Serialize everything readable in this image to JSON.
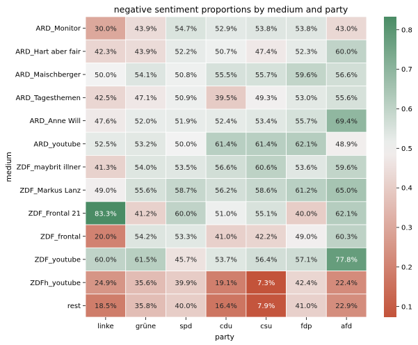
{
  "chart_data": {
    "type": "heatmap",
    "title": "negative sentiment proportions by medium and party",
    "xlabel": "party",
    "ylabel": "medium",
    "x_categories": [
      "linke",
      "grüne",
      "spd",
      "cdu",
      "csu",
      "fdp",
      "afd"
    ],
    "y_categories": [
      "ARD_Monitor",
      "ARD_Hart aber fair",
      "ARD_Maischberger",
      "ARD_Tagesthemen",
      "ARD_Anne Will",
      "ARD_youtube",
      "ZDF_maybrit illner",
      "ZDF_Markus Lanz",
      "ZDF_Frontal 21",
      "ZDF_frontal",
      "ZDF_youtube",
      "ZDFh_youtube",
      "rest"
    ],
    "values": [
      [
        0.3,
        0.439,
        0.547,
        0.529,
        0.538,
        0.538,
        0.43
      ],
      [
        0.423,
        0.439,
        0.522,
        0.507,
        0.474,
        0.523,
        0.6
      ],
      [
        0.5,
        0.541,
        0.508,
        0.555,
        0.557,
        0.596,
        0.566
      ],
      [
        0.425,
        0.471,
        0.509,
        0.395,
        0.493,
        0.53,
        0.556
      ],
      [
        0.476,
        0.52,
        0.519,
        0.524,
        0.534,
        0.557,
        0.694
      ],
      [
        0.525,
        0.532,
        0.5,
        0.614,
        0.614,
        0.621,
        0.489
      ],
      [
        0.413,
        0.54,
        0.535,
        0.566,
        0.606,
        0.536,
        0.596
      ],
      [
        0.49,
        0.556,
        0.587,
        0.562,
        0.586,
        0.612,
        0.65
      ],
      [
        0.833,
        0.412,
        0.6,
        0.51,
        0.551,
        0.4,
        0.621
      ],
      [
        0.2,
        0.542,
        0.533,
        0.41,
        0.422,
        0.49,
        0.603
      ],
      [
        0.6,
        0.615,
        0.457,
        0.537,
        0.564,
        0.571,
        0.778
      ],
      [
        0.249,
        0.356,
        0.399,
        0.191,
        0.073,
        0.424,
        0.224
      ],
      [
        0.185,
        0.358,
        0.4,
        0.164,
        0.079,
        0.41,
        0.229
      ]
    ],
    "labels": [
      [
        "30.0%",
        "43.9%",
        "54.7%",
        "52.9%",
        "53.8%",
        "53.8%",
        "43.0%"
      ],
      [
        "42.3%",
        "43.9%",
        "52.2%",
        "50.7%",
        "47.4%",
        "52.3%",
        "60.0%"
      ],
      [
        "50.0%",
        "54.1%",
        "50.8%",
        "55.5%",
        "55.7%",
        "59.6%",
        "56.6%"
      ],
      [
        "42.5%",
        "47.1%",
        "50.9%",
        "39.5%",
        "49.3%",
        "53.0%",
        "55.6%"
      ],
      [
        "47.6%",
        "52.0%",
        "51.9%",
        "52.4%",
        "53.4%",
        "55.7%",
        "69.4%"
      ],
      [
        "52.5%",
        "53.2%",
        "50.0%",
        "61.4%",
        "61.4%",
        "62.1%",
        "48.9%"
      ],
      [
        "41.3%",
        "54.0%",
        "53.5%",
        "56.6%",
        "60.6%",
        "53.6%",
        "59.6%"
      ],
      [
        "49.0%",
        "55.6%",
        "58.7%",
        "56.2%",
        "58.6%",
        "61.2%",
        "65.0%"
      ],
      [
        "83.3%",
        "41.2%",
        "60.0%",
        "51.0%",
        "55.1%",
        "40.0%",
        "62.1%"
      ],
      [
        "20.0%",
        "54.2%",
        "53.3%",
        "41.0%",
        "42.2%",
        "49.0%",
        "60.3%"
      ],
      [
        "60.0%",
        "61.5%",
        "45.7%",
        "53.7%",
        "56.4%",
        "57.1%",
        "77.8%"
      ],
      [
        "24.9%",
        "35.6%",
        "39.9%",
        "19.1%",
        "7.3%",
        "42.4%",
        "22.4%"
      ],
      [
        "18.5%",
        "35.8%",
        "40.0%",
        "16.4%",
        "7.9%",
        "41.0%",
        "22.9%"
      ]
    ],
    "color_scale": {
      "min": 0.073,
      "max": 0.833,
      "center": 0.5,
      "low_color": "#c3533a",
      "mid_color": "#f2f2f2",
      "high_color": "#4a8c65"
    },
    "colorbar_ticks": [
      0.1,
      0.2,
      0.3,
      0.4,
      0.5,
      0.6,
      0.7,
      0.8
    ],
    "colorbar_tick_labels": [
      "0.1",
      "0.2",
      "0.3",
      "0.4",
      "0.5",
      "0.6",
      "0.7",
      "0.8"
    ],
    "legend": "colorbar-right",
    "cell_border_color": "#ffffff"
  }
}
